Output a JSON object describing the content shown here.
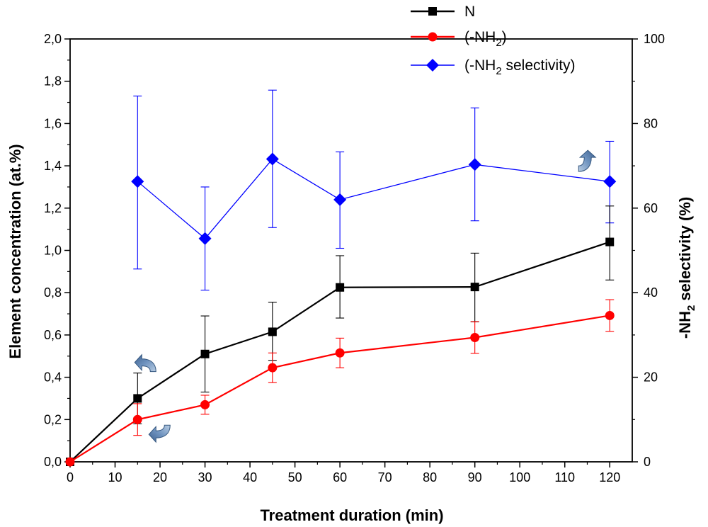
{
  "chart_data": {
    "type": "line",
    "x": [
      0,
      15,
      30,
      45,
      60,
      90,
      120
    ],
    "xlabel": "Treatment duration (min)",
    "xlim": [
      0,
      125
    ],
    "xticks": [
      0,
      10,
      20,
      30,
      40,
      50,
      60,
      70,
      80,
      90,
      100,
      110,
      120
    ],
    "xtick_labels": [
      "0",
      "10",
      "20",
      "30",
      "40",
      "50",
      "60",
      "70",
      "80",
      "90",
      "100",
      "110",
      "120"
    ],
    "ylabel": "Element concentration (at.%)",
    "ylim": [
      0,
      2.0
    ],
    "yticks": [
      0,
      0.2,
      0.4,
      0.6,
      0.8,
      1.0,
      1.2,
      1.4,
      1.6,
      1.8,
      2.0
    ],
    "ytick_labels": [
      "0,0",
      "0,2",
      "0,4",
      "0,6",
      "0,8",
      "1,0",
      "1,2",
      "1,4",
      "1,6",
      "1,8",
      "2,0"
    ],
    "y2label_prefix": "-NH",
    "y2label_sub": "2",
    "y2label_suffix": " selectivity (%)",
    "y2lim": [
      0,
      100
    ],
    "y2ticks": [
      0,
      20,
      40,
      60,
      80,
      100
    ],
    "y2tick_labels": [
      "0",
      "20",
      "40",
      "60",
      "80",
      "100"
    ],
    "grid": false,
    "legend_position": "top-right",
    "series": [
      {
        "name": "N",
        "legend_main": "N",
        "legend_sub": "",
        "legend_after": "",
        "axis": "left",
        "color": "#000000",
        "marker": "square",
        "x": [
          0,
          15,
          30,
          45,
          60,
          90,
          120
        ],
        "values": [
          0.0,
          0.3,
          0.51,
          0.615,
          0.825,
          0.827,
          1.04
        ],
        "err_low": [
          null,
          0.12,
          0.18,
          0.135,
          0.145,
          0.165,
          0.18
        ],
        "err_high": [
          null,
          0.12,
          0.18,
          0.14,
          0.15,
          0.16,
          0.17
        ]
      },
      {
        "name": "(-NH2)",
        "legend_main": "(-NH",
        "legend_sub": "2",
        "legend_after": ")",
        "axis": "left",
        "color": "#ff0000",
        "marker": "circle",
        "x": [
          0,
          15,
          30,
          45,
          60,
          90,
          120
        ],
        "values": [
          0.0,
          0.2,
          0.27,
          0.445,
          0.515,
          0.588,
          0.692
        ],
        "err_low": [
          null,
          0.075,
          0.045,
          0.07,
          0.07,
          0.075,
          0.075
        ],
        "err_high": [
          null,
          0.075,
          0.045,
          0.07,
          0.07,
          0.075,
          0.075
        ]
      },
      {
        "name": "(-NH2 selectivity)",
        "legend_main": "(-NH",
        "legend_sub": "2",
        "legend_after": " selectivity)",
        "axis": "right",
        "color": "#0000ff",
        "marker": "diamond",
        "x": [
          15,
          30,
          45,
          60,
          90,
          120
        ],
        "values": [
          66.3,
          52.8,
          71.6,
          62.0,
          70.3,
          66.3
        ],
        "err_low": [
          20.7,
          12.2,
          16.2,
          11.5,
          13.3,
          9.8
        ],
        "err_high": [
          20.2,
          12.2,
          16.3,
          11.3,
          13.4,
          9.5
        ]
      }
    ],
    "annotation_arrows": [
      {
        "type": "curved-arrow",
        "points_to": "left axis",
        "near_series": "N",
        "x": 15
      },
      {
        "type": "curved-arrow",
        "points_to": "left axis",
        "near_series": "(-NH2)",
        "x": 15
      },
      {
        "type": "curved-arrow",
        "points_to": "right axis",
        "near_series": "(-NH2 selectivity)",
        "x": 120
      }
    ]
  }
}
